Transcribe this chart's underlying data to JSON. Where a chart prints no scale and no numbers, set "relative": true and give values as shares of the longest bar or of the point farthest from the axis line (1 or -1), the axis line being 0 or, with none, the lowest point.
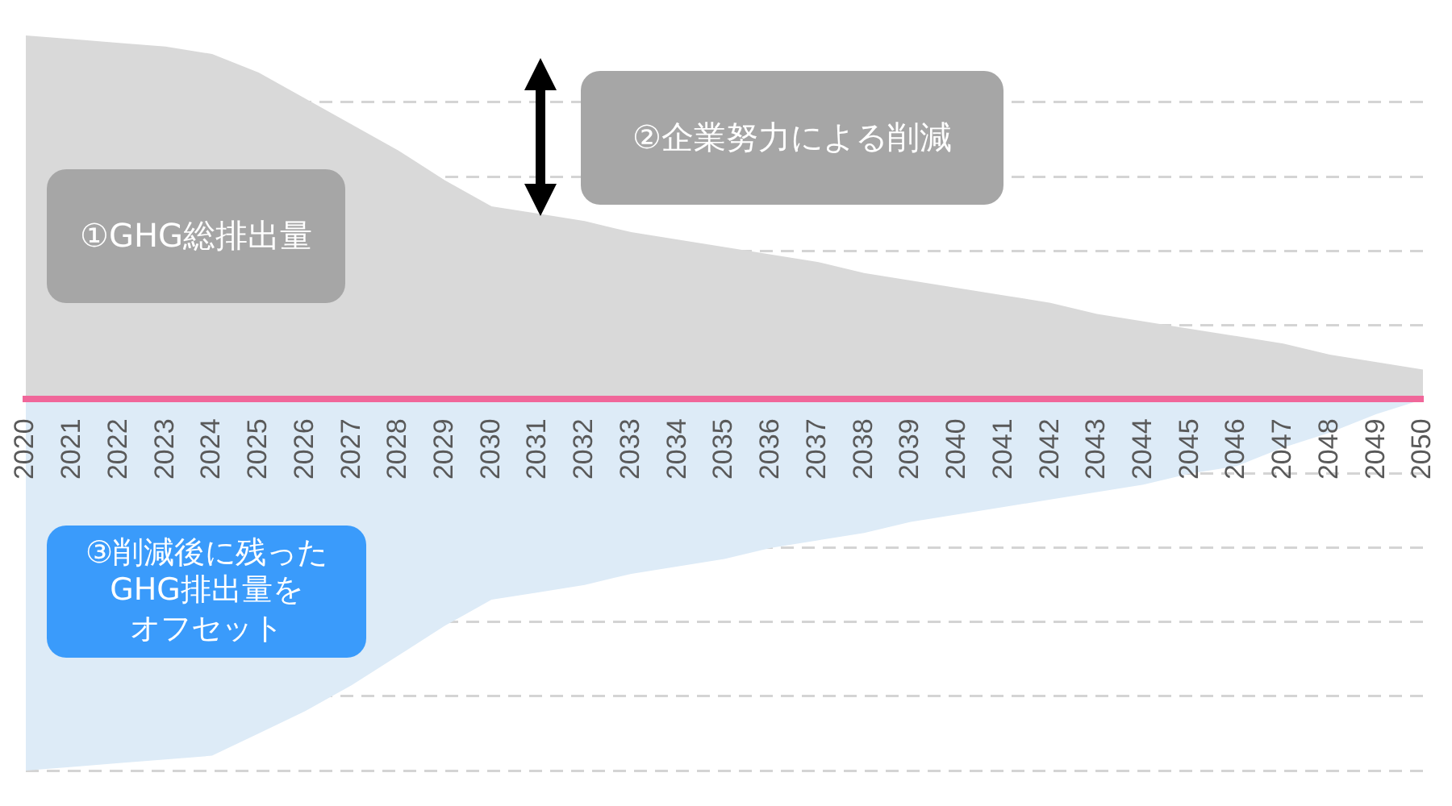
{
  "chart_data": {
    "type": "area",
    "relative": true,
    "categories": [
      "2020",
      "2021",
      "2022",
      "2023",
      "2024",
      "2025",
      "2026",
      "2027",
      "2028",
      "2029",
      "2030",
      "2031",
      "2032",
      "2033",
      "2034",
      "2035",
      "2036",
      "2037",
      "2038",
      "2039",
      "2040",
      "2041",
      "2042",
      "2043",
      "2044",
      "2045",
      "2046",
      "2047",
      "2048",
      "2049",
      "2050"
    ],
    "series": [
      {
        "color": "#d9d9d9",
        "values": [
          0.98,
          0.97,
          0.96,
          0.95,
          0.93,
          0.88,
          0.81,
          0.74,
          0.67,
          0.59,
          0.52,
          0.5,
          0.48,
          0.45,
          0.43,
          0.41,
          0.39,
          0.37,
          0.34,
          0.32,
          0.3,
          0.28,
          0.26,
          0.23,
          0.21,
          0.19,
          0.17,
          0.15,
          0.12,
          0.1,
          0.08
        ]
      },
      {
        "color": "#ddebf7",
        "values": [
          -1,
          -0.99,
          -0.98,
          -0.97,
          -0.96,
          -0.9,
          -0.84,
          -0.77,
          -0.69,
          -0.61,
          -0.54,
          -0.52,
          -0.5,
          -0.47,
          -0.45,
          -0.43,
          -0.4,
          -0.38,
          -0.36,
          -0.33,
          -0.31,
          -0.29,
          -0.27,
          -0.25,
          -0.23,
          -0.2,
          -0.18,
          -0.13,
          -0.09,
          -0.04,
          0
        ]
      }
    ],
    "grid": "y",
    "annotations": [
      "①GHG総排出量",
      "②企業努力による削減",
      "③削減後に残ったGHG排出量をオフセット"
    ]
  }
}
